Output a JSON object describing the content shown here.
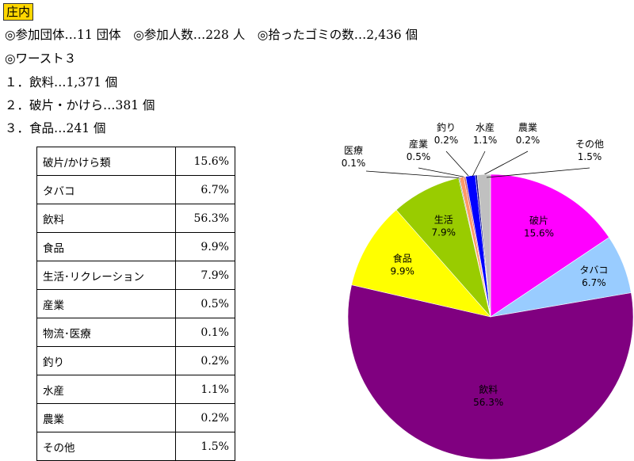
{
  "region": "庄内",
  "summary": {
    "groups": "◎参加団体…11 団体",
    "participants": "◎参加人数…228 人",
    "trash": "◎拾ったゴミの数…2,436 個"
  },
  "worst3": {
    "title": "◎ワースト３",
    "items": [
      "１．飲料…1,371 個",
      "２．破片・かけら…381 個",
      "３．食品…241 個"
    ]
  },
  "table": [
    {
      "name": "破片/かけら類",
      "pct": "15.6%"
    },
    {
      "name": "タバコ",
      "pct": "6.7%"
    },
    {
      "name": "飲料",
      "pct": "56.3%"
    },
    {
      "name": "食品",
      "pct": "9.9%"
    },
    {
      "name": "生活･リクレーション",
      "pct": "7.9%"
    },
    {
      "name": "産業",
      "pct": "0.5%"
    },
    {
      "name": "物流･医療",
      "pct": "0.1%"
    },
    {
      "name": "釣り",
      "pct": "0.2%"
    },
    {
      "name": "水産",
      "pct": "1.1%"
    },
    {
      "name": "農業",
      "pct": "0.2%"
    },
    {
      "name": "その他",
      "pct": "1.5%"
    }
  ],
  "chart_data": {
    "type": "pie",
    "title": "",
    "start_angle_deg": 0,
    "direction": "clockwise",
    "slices": [
      {
        "label": "破片",
        "value": 15.6,
        "color": "#ff00ff",
        "display": "15.6%",
        "placement": "inside"
      },
      {
        "label": "タバコ",
        "value": 6.7,
        "color": "#99ccff",
        "display": "6.7%",
        "placement": "inside"
      },
      {
        "label": "飲料",
        "value": 56.3,
        "color": "#800080",
        "display": "56.3%",
        "placement": "inside"
      },
      {
        "label": "食品",
        "value": 9.9,
        "color": "#ffff00",
        "display": "9.9%",
        "placement": "inside"
      },
      {
        "label": "生活",
        "value": 7.9,
        "color": "#99cc00",
        "display": "7.9%",
        "placement": "inside"
      },
      {
        "label": "医療",
        "value": 0.1,
        "color": "#336666",
        "display": "0.1%",
        "placement": "outside"
      },
      {
        "label": "産業",
        "value": 0.5,
        "color": "#ff9966",
        "display": "0.5%",
        "placement": "outside"
      },
      {
        "label": "釣り",
        "value": 0.2,
        "color": "#cc6666",
        "display": "0.2%",
        "placement": "outside"
      },
      {
        "label": "水産",
        "value": 1.1,
        "color": "#0000ff",
        "display": "1.1%",
        "placement": "outside"
      },
      {
        "label": "農業",
        "value": 0.2,
        "color": "#000080",
        "display": "0.2%",
        "placement": "outside"
      },
      {
        "label": "その他",
        "value": 1.5,
        "color": "#c0c0c0",
        "display": "1.5%",
        "placement": "outside"
      }
    ]
  }
}
